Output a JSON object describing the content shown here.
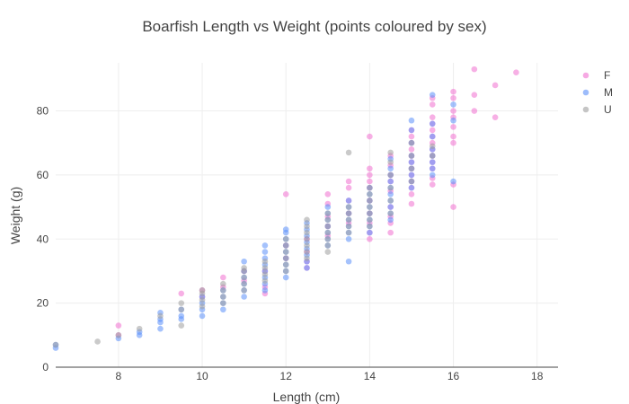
{
  "chart_data": {
    "type": "scatter",
    "title": "Boarfish Length vs Weight (points coloured by sex)",
    "xlabel": "Length (cm)",
    "ylabel": "Weight (g)",
    "xlim": [
      6.5,
      18.5
    ],
    "ylim": [
      0,
      95
    ],
    "xticks": [
      8,
      10,
      12,
      14,
      16,
      18
    ],
    "yticks": [
      0,
      20,
      40,
      60,
      80
    ],
    "grid": true,
    "legend_position": "top-right",
    "series": [
      {
        "name": "F",
        "color": "#f070d0",
        "points": [
          [
            8,
            13
          ],
          [
            8,
            10
          ],
          [
            9.5,
            23
          ],
          [
            10,
            24
          ],
          [
            10,
            22
          ],
          [
            10.5,
            28
          ],
          [
            10.5,
            25
          ],
          [
            11,
            30
          ],
          [
            11,
            27
          ],
          [
            11.5,
            30
          ],
          [
            11.5,
            25
          ],
          [
            11.5,
            23
          ],
          [
            12,
            54
          ],
          [
            12,
            38
          ],
          [
            12,
            34
          ],
          [
            12.5,
            40
          ],
          [
            12.5,
            36
          ],
          [
            12.5,
            33
          ],
          [
            12.5,
            31
          ],
          [
            13,
            54
          ],
          [
            13,
            51
          ],
          [
            13,
            47
          ],
          [
            13,
            44
          ],
          [
            13,
            41
          ],
          [
            13.5,
            58
          ],
          [
            13.5,
            56
          ],
          [
            13.5,
            52
          ],
          [
            13.5,
            48
          ],
          [
            13.5,
            45
          ],
          [
            14,
            72
          ],
          [
            14,
            62
          ],
          [
            14,
            60
          ],
          [
            14,
            58
          ],
          [
            14,
            56
          ],
          [
            14,
            52
          ],
          [
            14,
            48
          ],
          [
            14,
            45
          ],
          [
            14,
            42
          ],
          [
            14,
            40
          ],
          [
            14.5,
            66
          ],
          [
            14.5,
            63
          ],
          [
            14.5,
            60
          ],
          [
            14.5,
            58
          ],
          [
            14.5,
            55
          ],
          [
            14.5,
            50
          ],
          [
            14.5,
            47
          ],
          [
            14.5,
            45
          ],
          [
            14.5,
            42
          ],
          [
            15,
            74
          ],
          [
            15,
            72
          ],
          [
            15,
            70
          ],
          [
            15,
            68
          ],
          [
            15,
            66
          ],
          [
            15,
            64
          ],
          [
            15,
            62
          ],
          [
            15,
            60
          ],
          [
            15,
            58
          ],
          [
            15,
            56
          ],
          [
            15,
            54
          ],
          [
            15,
            51
          ],
          [
            15.5,
            84
          ],
          [
            15.5,
            82
          ],
          [
            15.5,
            78
          ],
          [
            15.5,
            76
          ],
          [
            15.5,
            74
          ],
          [
            15.5,
            72
          ],
          [
            15.5,
            70
          ],
          [
            15.5,
            68
          ],
          [
            15.5,
            66
          ],
          [
            15.5,
            64
          ],
          [
            15.5,
            62
          ],
          [
            15.5,
            59
          ],
          [
            15.5,
            57
          ],
          [
            16,
            86
          ],
          [
            16,
            84
          ],
          [
            16,
            80
          ],
          [
            16,
            78
          ],
          [
            16,
            75
          ],
          [
            16,
            72
          ],
          [
            16,
            70
          ],
          [
            16,
            57
          ],
          [
            16,
            50
          ],
          [
            16.5,
            93
          ],
          [
            16.5,
            85
          ],
          [
            16.5,
            80
          ],
          [
            17,
            88
          ],
          [
            17,
            78
          ],
          [
            17.5,
            92
          ]
        ]
      },
      {
        "name": "M",
        "color": "#5b8ff9",
        "points": [
          [
            6.5,
            6
          ],
          [
            6.5,
            7
          ],
          [
            8,
            9
          ],
          [
            8.5,
            10
          ],
          [
            8.5,
            11
          ],
          [
            9,
            12
          ],
          [
            9,
            14
          ],
          [
            9,
            15
          ],
          [
            9,
            17
          ],
          [
            9.5,
            15
          ],
          [
            9.5,
            16
          ],
          [
            9.5,
            18
          ],
          [
            10,
            16
          ],
          [
            10,
            18
          ],
          [
            10,
            20
          ],
          [
            10,
            22
          ],
          [
            10.5,
            18
          ],
          [
            10.5,
            20
          ],
          [
            10.5,
            22
          ],
          [
            10.5,
            24
          ],
          [
            11,
            22
          ],
          [
            11,
            24
          ],
          [
            11,
            26
          ],
          [
            11,
            28
          ],
          [
            11,
            30
          ],
          [
            11,
            33
          ],
          [
            11.5,
            24
          ],
          [
            11.5,
            26
          ],
          [
            11.5,
            28
          ],
          [
            11.5,
            30
          ],
          [
            11.5,
            32
          ],
          [
            11.5,
            34
          ],
          [
            11.5,
            36
          ],
          [
            11.5,
            38
          ],
          [
            12,
            28
          ],
          [
            12,
            30
          ],
          [
            12,
            32
          ],
          [
            12,
            34
          ],
          [
            12,
            36
          ],
          [
            12,
            38
          ],
          [
            12,
            40
          ],
          [
            12,
            42
          ],
          [
            12,
            43
          ],
          [
            12.5,
            31
          ],
          [
            12.5,
            33
          ],
          [
            12.5,
            35
          ],
          [
            12.5,
            37
          ],
          [
            12.5,
            39
          ],
          [
            12.5,
            41
          ],
          [
            12.5,
            43
          ],
          [
            12.5,
            45
          ],
          [
            13,
            38
          ],
          [
            13,
            40
          ],
          [
            13,
            42
          ],
          [
            13,
            44
          ],
          [
            13,
            46
          ],
          [
            13,
            48
          ],
          [
            13,
            50
          ],
          [
            13.5,
            33
          ],
          [
            13.5,
            40
          ],
          [
            13.5,
            42
          ],
          [
            13.5,
            44
          ],
          [
            13.5,
            46
          ],
          [
            13.5,
            48
          ],
          [
            13.5,
            50
          ],
          [
            13.5,
            52
          ],
          [
            14,
            42
          ],
          [
            14,
            44
          ],
          [
            14,
            46
          ],
          [
            14,
            48
          ],
          [
            14,
            50
          ],
          [
            14,
            52
          ],
          [
            14,
            54
          ],
          [
            14,
            56
          ],
          [
            14.5,
            46
          ],
          [
            14.5,
            48
          ],
          [
            14.5,
            50
          ],
          [
            14.5,
            52
          ],
          [
            14.5,
            54
          ],
          [
            14.5,
            56
          ],
          [
            14.5,
            58
          ],
          [
            14.5,
            60
          ],
          [
            14.5,
            62
          ],
          [
            14.5,
            65
          ],
          [
            15,
            56
          ],
          [
            15,
            58
          ],
          [
            15,
            60
          ],
          [
            15,
            62
          ],
          [
            15,
            64
          ],
          [
            15,
            66
          ],
          [
            15,
            70
          ],
          [
            15,
            74
          ],
          [
            15,
            77
          ],
          [
            15.5,
            60
          ],
          [
            15.5,
            62
          ],
          [
            15.5,
            64
          ],
          [
            15.5,
            66
          ],
          [
            15.5,
            68
          ],
          [
            15.5,
            72
          ],
          [
            15.5,
            76
          ],
          [
            15.5,
            85
          ],
          [
            16,
            58
          ],
          [
            16,
            77
          ],
          [
            16,
            82
          ]
        ]
      },
      {
        "name": "U",
        "color": "#9e9e9e",
        "points": [
          [
            6.5,
            7
          ],
          [
            7.5,
            8
          ],
          [
            8,
            10
          ],
          [
            8.5,
            12
          ],
          [
            9,
            16
          ],
          [
            9.5,
            13
          ],
          [
            9.5,
            18
          ],
          [
            9.5,
            20
          ],
          [
            10,
            19
          ],
          [
            10,
            21
          ],
          [
            10,
            23
          ],
          [
            10,
            24
          ],
          [
            10.5,
            20
          ],
          [
            10.5,
            22
          ],
          [
            10.5,
            24
          ],
          [
            10.5,
            26
          ],
          [
            11,
            24
          ],
          [
            11,
            26
          ],
          [
            11,
            28
          ],
          [
            11,
            30
          ],
          [
            11,
            31
          ],
          [
            11.5,
            27
          ],
          [
            11.5,
            29
          ],
          [
            11.5,
            31
          ],
          [
            11.5,
            33
          ],
          [
            12,
            30
          ],
          [
            12,
            32
          ],
          [
            12,
            34
          ],
          [
            12,
            36
          ],
          [
            12,
            38
          ],
          [
            12,
            40
          ],
          [
            12.5,
            34
          ],
          [
            12.5,
            36
          ],
          [
            12.5,
            38
          ],
          [
            12.5,
            40
          ],
          [
            12.5,
            42
          ],
          [
            12.5,
            44
          ],
          [
            12.5,
            46
          ],
          [
            13,
            36
          ],
          [
            13,
            38
          ],
          [
            13,
            40
          ],
          [
            13,
            42
          ],
          [
            13,
            44
          ],
          [
            13,
            46
          ],
          [
            13,
            48
          ],
          [
            13.5,
            67
          ],
          [
            13.5,
            42
          ],
          [
            13.5,
            44
          ],
          [
            13.5,
            46
          ],
          [
            13.5,
            48
          ],
          [
            13.5,
            50
          ],
          [
            14,
            44
          ],
          [
            14,
            46
          ],
          [
            14,
            48
          ],
          [
            14,
            50
          ],
          [
            14,
            52
          ],
          [
            14,
            54
          ],
          [
            14,
            56
          ],
          [
            14.5,
            48
          ],
          [
            14.5,
            52
          ],
          [
            14.5,
            56
          ],
          [
            14.5,
            60
          ],
          [
            14.5,
            64
          ],
          [
            14.5,
            67
          ],
          [
            15,
            58
          ],
          [
            15,
            62
          ],
          [
            15,
            66
          ],
          [
            15,
            70
          ],
          [
            15.5,
            66
          ],
          [
            15.5,
            69
          ]
        ]
      }
    ]
  }
}
